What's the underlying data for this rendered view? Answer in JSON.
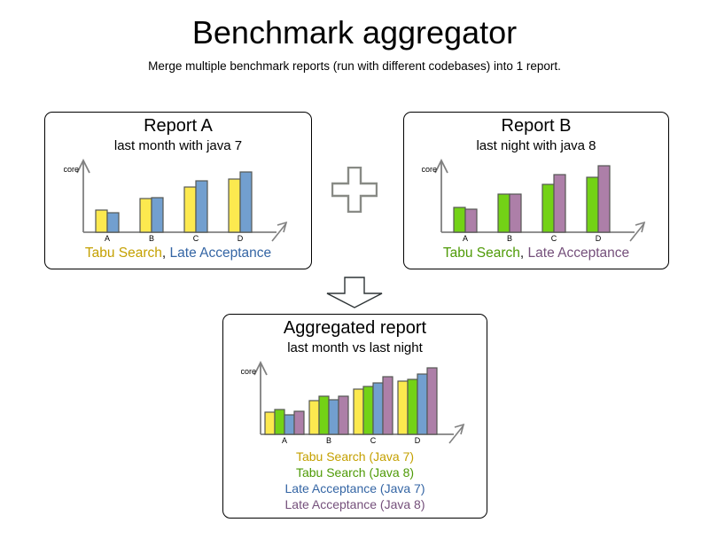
{
  "page": {
    "title": "Benchmark aggregator",
    "subtitle": "Merge multiple benchmark reports (run with different codebases) into 1 report."
  },
  "icons": {
    "plus": "plus-icon",
    "arrow_down": "arrow-down-icon"
  },
  "colors": {
    "tabu_search_java7_fill": "#FCE94F",
    "tabu_search_java8_fill": "#73D216",
    "late_acceptance_java7_fill": "#729FCF",
    "late_acceptance_java8_fill": "#AD7FA8",
    "tabu_search_java7_text": "#C4A000",
    "tabu_search_java8_text": "#4E9A06",
    "late_acceptance_java7_text": "#3465A4",
    "late_acceptance_java8_text": "#75507B",
    "bar_border": "#555753",
    "axis": "#808080",
    "text": "#000000"
  },
  "chart_data": [
    {
      "id": "report-a",
      "type": "bar",
      "title": "Report A",
      "subtitle": "last month with java 7",
      "ylabel": "Score",
      "xlabel": "",
      "categories": [
        "A",
        "B",
        "C",
        "D"
      ],
      "ylim": [
        0,
        100
      ],
      "axis_ticks": "none",
      "grid": false,
      "series": [
        {
          "name": "Tabu Search",
          "fill": "#FCE94F",
          "values": [
            25,
            38,
            51,
            60
          ]
        },
        {
          "name": "Late Acceptance",
          "fill": "#729FCF",
          "values": [
            22,
            39,
            58,
            68
          ]
        }
      ],
      "legend": {
        "layout": "inline",
        "separator": ", ",
        "items": [
          {
            "label": "Tabu Search",
            "color": "#C4A000"
          },
          {
            "label": "Late Acceptance",
            "color": "#3465A4"
          }
        ]
      }
    },
    {
      "id": "report-b",
      "type": "bar",
      "title": "Report B",
      "subtitle": "last night with java 8",
      "ylabel": "Score",
      "xlabel": "",
      "categories": [
        "A",
        "B",
        "C",
        "D"
      ],
      "ylim": [
        0,
        100
      ],
      "axis_ticks": "none",
      "grid": false,
      "series": [
        {
          "name": "Tabu Search",
          "fill": "#73D216",
          "values": [
            28,
            43,
            54,
            62
          ]
        },
        {
          "name": "Late Acceptance",
          "fill": "#AD7FA8",
          "values": [
            26,
            43,
            65,
            75
          ]
        }
      ],
      "legend": {
        "layout": "inline",
        "separator": ", ",
        "items": [
          {
            "label": "Tabu Search",
            "color": "#4E9A06"
          },
          {
            "label": "Late Acceptance",
            "color": "#75507B"
          }
        ]
      }
    },
    {
      "id": "aggregated",
      "type": "bar",
      "title": "Aggregated report",
      "subtitle": "last month vs last night",
      "ylabel": "Score",
      "xlabel": "",
      "categories": [
        "A",
        "B",
        "C",
        "D"
      ],
      "ylim": [
        0,
        100
      ],
      "axis_ticks": "none",
      "grid": false,
      "series": [
        {
          "name": "Tabu Search (Java 7)",
          "fill": "#FCE94F",
          "values": [
            25,
            38,
            51,
            60
          ]
        },
        {
          "name": "Tabu Search (Java 8)",
          "fill": "#73D216",
          "values": [
            28,
            43,
            54,
            62
          ]
        },
        {
          "name": "Late Acceptance (Java 7)",
          "fill": "#729FCF",
          "values": [
            22,
            39,
            58,
            68
          ]
        },
        {
          "name": "Late Acceptance (Java 8)",
          "fill": "#AD7FA8",
          "values": [
            26,
            43,
            65,
            75
          ]
        }
      ],
      "legend": {
        "layout": "stacked",
        "separator": "",
        "items": [
          {
            "label": "Tabu Search (Java 7)",
            "color": "#C4A000"
          },
          {
            "label": "Tabu Search (Java 8)",
            "color": "#4E9A06"
          },
          {
            "label": "Late Acceptance (Java 7)",
            "color": "#3465A4"
          },
          {
            "label": "Late Acceptance (Java 8)",
            "color": "#75507B"
          }
        ]
      }
    }
  ]
}
